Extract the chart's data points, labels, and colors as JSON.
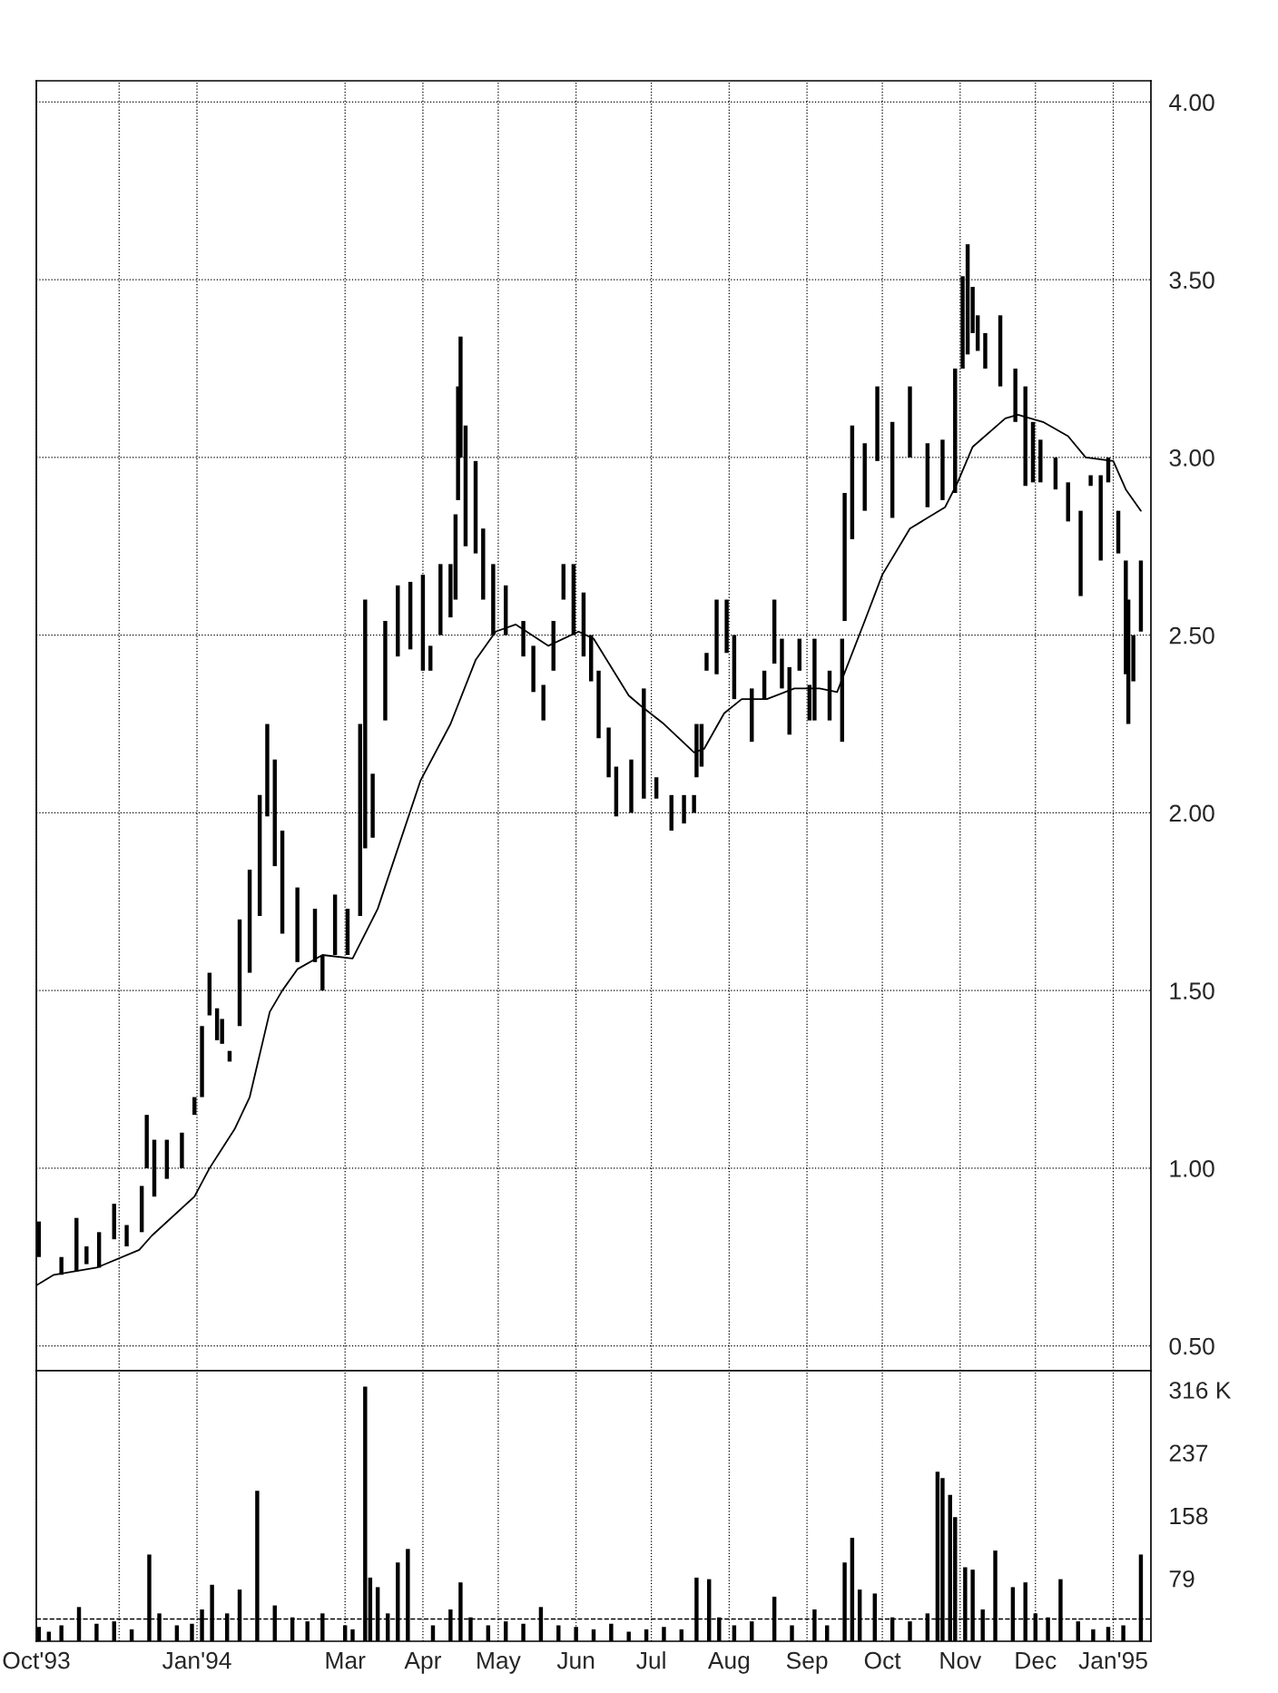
{
  "chart_data": [
    {
      "type": "bar",
      "xlim": [
        "1993-10-29",
        "1995-01-16"
      ],
      "ylim": [
        0.43,
        4.06
      ],
      "yticks": [
        {
          "value": 0.5,
          "label": "0.50"
        },
        {
          "value": 1.0,
          "label": "1.00"
        },
        {
          "value": 1.5,
          "label": "1.50"
        },
        {
          "value": 2.0,
          "label": "2.00"
        },
        {
          "value": 2.5,
          "label": "2.50"
        },
        {
          "value": 3.0,
          "label": "3.00"
        },
        {
          "value": 3.5,
          "label": "3.50"
        },
        {
          "value": 4.0,
          "label": "4.00"
        }
      ],
      "xticks": [
        {
          "value": "1993-10-29",
          "label": null
        },
        {
          "value": "1993-12-01",
          "label": null
        },
        {
          "value": "1994-01-01",
          "label": null
        },
        {
          "value": "1994-03-01",
          "label": null
        },
        {
          "value": "1994-04-01",
          "label": null
        },
        {
          "value": "1994-05-01",
          "label": null
        },
        {
          "value": "1994-06-01",
          "label": null
        },
        {
          "value": "1994-07-01",
          "label": null
        },
        {
          "value": "1994-08-01",
          "label": null
        },
        {
          "value": "1994-09-01",
          "label": null
        },
        {
          "value": "1994-10-01",
          "label": null
        },
        {
          "value": "1994-11-01",
          "label": null
        },
        {
          "value": "1994-12-01",
          "label": null
        },
        {
          "value": "1995-01-01",
          "label": null
        }
      ],
      "grid": true,
      "tick_labels": "y",
      "series": [
        {
          "type": "bar",
          "color": "#000000",
          "x": [
            "1993-10-30",
            "1993-11-08",
            "1993-11-14",
            "1993-11-18",
            "1993-11-23",
            "1993-11-29",
            "1993-12-04",
            "1993-12-10",
            "1993-12-12",
            "1993-12-15",
            "1993-12-20",
            "1993-12-26",
            "1993-12-31",
            "1994-01-03",
            "1994-01-06",
            "1994-01-09",
            "1994-01-11",
            "1994-01-14",
            "1994-01-18",
            "1994-01-22",
            "1994-01-26",
            "1994-01-29",
            "1994-02-01",
            "1994-02-04",
            "1994-02-10",
            "1994-02-17",
            "1994-02-20",
            "1994-02-25",
            "1994-03-02",
            "1994-03-07",
            "1994-03-09",
            "1994-03-12",
            "1994-03-17",
            "1994-03-22",
            "1994-03-27",
            "1994-04-01",
            "1994-04-04",
            "1994-04-08",
            "1994-04-12",
            "1994-04-14",
            "1994-04-15",
            "1994-04-16",
            "1994-04-18",
            "1994-04-22",
            "1994-04-25",
            "1994-04-29",
            "1994-05-04",
            "1994-05-11",
            "1994-05-15",
            "1994-05-19",
            "1994-05-23",
            "1994-05-27",
            "1994-05-31",
            "1994-06-04",
            "1994-06-07",
            "1994-06-10",
            "1994-06-14",
            "1994-06-17",
            "1994-06-23",
            "1994-06-28",
            "1994-07-03",
            "1994-07-09",
            "1994-07-14",
            "1994-07-18",
            "1994-07-19",
            "1994-07-21",
            "1994-07-23",
            "1994-07-27",
            "1994-07-31",
            "1994-08-03",
            "1994-08-10",
            "1994-08-15",
            "1994-08-19",
            "1994-08-22",
            "1994-08-25",
            "1994-08-29",
            "1994-09-02",
            "1994-09-04",
            "1994-09-10",
            "1994-09-15",
            "1994-09-16",
            "1994-09-19",
            "1994-09-24",
            "1994-09-29",
            "1994-10-05",
            "1994-10-12",
            "1994-10-19",
            "1994-10-25",
            "1994-10-30",
            "1994-11-02",
            "1994-11-04",
            "1994-11-06",
            "1994-11-08",
            "1994-11-11",
            "1994-11-17",
            "1994-11-23",
            "1994-11-27",
            "1994-11-30",
            "1994-12-03",
            "1994-12-09",
            "1994-12-14",
            "1994-12-19",
            "1994-12-23",
            "1994-12-27",
            "1994-12-30",
            "1995-01-03",
            "1995-01-06",
            "1995-01-07",
            "1995-01-09",
            "1995-01-12"
          ],
          "base": [
            0.75,
            0.7,
            0.71,
            0.73,
            0.72,
            0.8,
            0.78,
            0.82,
            1.0,
            0.92,
            0.97,
            1.0,
            1.15,
            1.2,
            1.43,
            1.36,
            1.35,
            1.3,
            1.4,
            1.55,
            1.71,
            1.99,
            1.85,
            1.66,
            1.58,
            1.58,
            1.5,
            1.6,
            1.6,
            1.71,
            1.9,
            1.93,
            2.26,
            2.44,
            2.46,
            2.4,
            2.4,
            2.5,
            2.55,
            2.6,
            2.88,
            3.0,
            2.75,
            2.73,
            2.6,
            2.5,
            2.5,
            2.44,
            2.34,
            2.26,
            2.4,
            2.6,
            2.5,
            2.44,
            2.37,
            2.21,
            2.1,
            1.99,
            2.0,
            2.04,
            2.04,
            1.95,
            1.97,
            2.0,
            2.1,
            2.13,
            2.4,
            2.39,
            2.45,
            2.32,
            2.2,
            2.32,
            2.42,
            2.35,
            2.22,
            2.4,
            2.26,
            2.26,
            2.26,
            2.2,
            2.54,
            2.77,
            2.85,
            2.99,
            2.83,
            3.0,
            2.86,
            2.88,
            2.9,
            3.25,
            3.29,
            3.35,
            3.3,
            3.25,
            3.2,
            3.1,
            2.92,
            2.93,
            2.93,
            2.91,
            2.82,
            2.61,
            2.92,
            2.71,
            2.93,
            2.73,
            2.39,
            2.25,
            2.37,
            2.51
          ],
          "values": [
            0.1,
            0.05,
            0.15,
            0.05,
            0.1,
            0.1,
            0.06,
            0.13,
            0.15,
            0.16,
            0.11,
            0.1,
            0.05,
            0.2,
            0.12,
            0.09,
            0.07,
            0.03,
            0.3,
            0.29,
            0.34,
            0.26,
            0.3,
            0.29,
            0.21,
            0.15,
            0.1,
            0.17,
            0.13,
            0.54,
            0.7,
            0.18,
            0.28,
            0.2,
            0.19,
            0.27,
            0.07,
            0.2,
            0.15,
            0.24,
            0.32,
            0.34,
            0.34,
            0.26,
            0.2,
            0.2,
            0.14,
            0.1,
            0.13,
            0.1,
            0.14,
            0.1,
            0.2,
            0.18,
            0.13,
            0.19,
            0.14,
            0.14,
            0.15,
            0.31,
            0.06,
            0.1,
            0.08,
            0.05,
            0.15,
            0.12,
            0.05,
            0.21,
            0.15,
            0.18,
            0.15,
            0.08,
            0.18,
            0.14,
            0.19,
            0.09,
            0.1,
            0.23,
            0.14,
            0.29,
            0.36,
            0.32,
            0.19,
            0.21,
            0.27,
            0.2,
            0.18,
            0.17,
            0.35,
            0.26,
            0.31,
            0.13,
            0.1,
            0.1,
            0.2,
            0.15,
            0.28,
            0.17,
            0.12,
            0.09,
            0.11,
            0.24,
            0.03,
            0.24,
            0.07,
            0.12,
            0.32,
            0.35,
            0.13,
            0.2
          ]
        },
        {
          "type": "line",
          "color": "#000000",
          "x": [
            "1993-10-29",
            "1993-11-05",
            "1993-11-22",
            "1993-12-09",
            "1993-12-14",
            "1993-12-31",
            "1994-01-06",
            "1994-01-16",
            "1994-01-22",
            "1994-01-30",
            "1994-02-04",
            "1994-02-10",
            "1994-02-20",
            "1994-03-04",
            "1994-03-14",
            "1994-03-31",
            "1994-04-12",
            "1994-04-22",
            "1994-04-30",
            "1994-05-08",
            "1994-05-21",
            "1994-06-02",
            "1994-06-08",
            "1994-06-22",
            "1994-06-27",
            "1994-07-06",
            "1994-07-18",
            "1994-07-22",
            "1994-07-30",
            "1994-08-06",
            "1994-08-16",
            "1994-08-27",
            "1994-09-06",
            "1994-09-13",
            "1994-09-24",
            "1994-10-01",
            "1994-10-12",
            "1994-10-26",
            "1994-10-31",
            "1994-11-06",
            "1994-11-19",
            "1994-11-24",
            "1994-12-04",
            "1994-12-14",
            "1994-12-21",
            "1995-01-01",
            "1995-01-06",
            "1995-01-12"
          ],
          "values": [
            0.67,
            0.7,
            0.72,
            0.77,
            0.81,
            0.92,
            1.0,
            1.11,
            1.2,
            1.44,
            1.5,
            1.56,
            1.6,
            1.59,
            1.73,
            2.09,
            2.25,
            2.43,
            2.51,
            2.53,
            2.47,
            2.51,
            2.49,
            2.33,
            2.3,
            2.25,
            2.17,
            2.18,
            2.28,
            2.32,
            2.32,
            2.35,
            2.35,
            2.34,
            2.54,
            2.67,
            2.8,
            2.86,
            2.93,
            3.03,
            3.11,
            3.12,
            3.1,
            3.06,
            3.0,
            2.99,
            2.91,
            2.85
          ]
        }
      ]
    },
    {
      "type": "bar",
      "color": "#000000",
      "xlim": [
        "1993-10-29",
        "1995-01-16"
      ],
      "ylim": [
        0,
        340
      ],
      "yticks": [
        79,
        158,
        237,
        {
          "value": 316,
          "label": "316 K"
        }
      ],
      "xticks": [
        {
          "value": "1993-10-29",
          "label": "Oct'93"
        },
        {
          "value": "1993-12-01",
          "label": null
        },
        {
          "value": "1994-01-01",
          "label": "Jan'94"
        },
        {
          "value": "1994-03-01",
          "label": "Mar"
        },
        {
          "value": "1994-04-01",
          "label": "Apr"
        },
        {
          "value": "1994-05-01",
          "label": "May"
        },
        {
          "value": "1994-06-01",
          "label": "Jun"
        },
        {
          "value": "1994-07-01",
          "label": "Jul"
        },
        {
          "value": "1994-08-01",
          "label": "Aug"
        },
        {
          "value": "1994-09-01",
          "label": "Sep"
        },
        {
          "value": "1994-10-01",
          "label": "Oct"
        },
        {
          "value": "1994-11-01",
          "label": "Nov"
        },
        {
          "value": "1994-12-01",
          "label": "Dec"
        },
        {
          "value": "1995-01-01",
          "label": "Jan'95"
        }
      ],
      "grid": "x",
      "ref_lines": [
        {
          "axis": "y",
          "value": 28,
          "label": null,
          "line_style": "dashed",
          "color": "#000000"
        }
      ],
      "x": [
        "1993-10-30",
        "1993-11-03",
        "1993-11-08",
        "1993-11-15",
        "1993-11-22",
        "1993-11-29",
        "1993-12-06",
        "1993-12-13",
        "1993-12-17",
        "1993-12-24",
        "1993-12-30",
        "1994-01-03",
        "1994-01-07",
        "1994-01-13",
        "1994-01-18",
        "1994-01-25",
        "1994-02-01",
        "1994-02-08",
        "1994-02-14",
        "1994-02-20",
        "1994-03-01",
        "1994-03-04",
        "1994-03-09",
        "1994-03-11",
        "1994-03-14",
        "1994-03-18",
        "1994-03-22",
        "1994-03-26",
        "1994-04-05",
        "1994-04-12",
        "1994-04-16",
        "1994-04-20",
        "1994-04-27",
        "1994-05-04",
        "1994-05-11",
        "1994-05-18",
        "1994-05-25",
        "1994-06-01",
        "1994-06-08",
        "1994-06-15",
        "1994-06-22",
        "1994-06-29",
        "1994-07-06",
        "1994-07-13",
        "1994-07-19",
        "1994-07-24",
        "1994-07-28",
        "1994-08-03",
        "1994-08-10",
        "1994-08-19",
        "1994-08-26",
        "1994-09-04",
        "1994-09-09",
        "1994-09-16",
        "1994-09-19",
        "1994-09-22",
        "1994-09-28",
        "1994-10-05",
        "1994-10-12",
        "1994-10-19",
        "1994-10-23",
        "1994-10-25",
        "1994-10-28",
        "1994-10-30",
        "1994-11-03",
        "1994-11-06",
        "1994-11-10",
        "1994-11-15",
        "1994-11-22",
        "1994-11-27",
        "1994-12-01",
        "1994-12-06",
        "1994-12-11",
        "1994-12-18",
        "1994-12-24",
        "1994-12-30",
        "1995-01-05",
        "1995-01-12"
      ],
      "values": [
        18,
        12,
        20,
        43,
        22,
        25,
        15,
        109,
        35,
        20,
        22,
        40,
        71,
        35,
        65,
        189,
        45,
        30,
        25,
        35,
        20,
        15,
        320,
        80,
        68,
        35,
        99,
        116,
        20,
        40,
        74,
        30,
        20,
        25,
        22,
        43,
        20,
        18,
        15,
        22,
        12,
        15,
        18,
        15,
        80,
        78,
        30,
        20,
        25,
        56,
        20,
        40,
        20,
        99,
        130,
        65,
        60,
        30,
        25,
        35,
        213,
        205,
        184,
        156,
        93,
        90,
        40,
        114,
        68,
        74,
        35,
        30,
        78,
        25,
        15,
        18,
        20,
        109
      ]
    }
  ]
}
